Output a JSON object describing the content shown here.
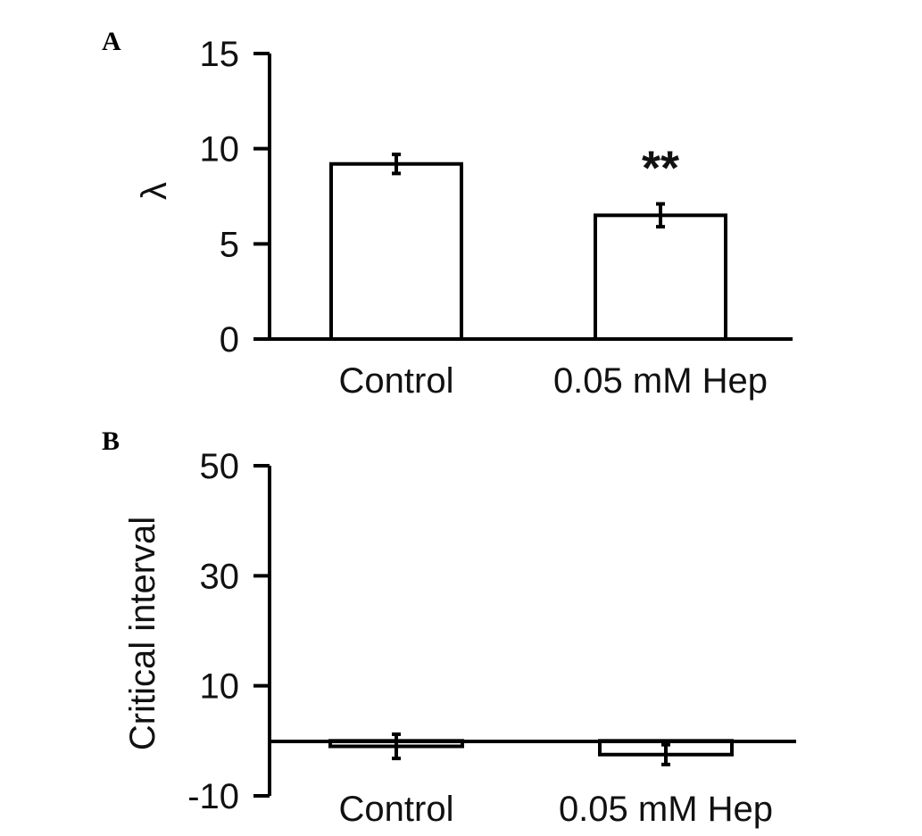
{
  "chart_data": [
    {
      "panel": "A",
      "type": "bar",
      "categories": [
        "Control",
        "0.05 mM Hep"
      ],
      "values": [
        9.2,
        6.5
      ],
      "errors": [
        0.5,
        0.6
      ],
      "annotations": [
        "",
        "**"
      ],
      "ylabel": "λ",
      "xlabel": "",
      "ylim": [
        0,
        15
      ],
      "yticks": [
        "0",
        "5",
        "10",
        "15"
      ],
      "bar_fill": "#ffffff",
      "stroke": "#000000",
      "grid": false
    },
    {
      "panel": "B",
      "type": "bar",
      "categories": [
        "Control",
        "0.05 mM Hep"
      ],
      "values": [
        -1.0,
        -2.5
      ],
      "errors": [
        2.2,
        1.8
      ],
      "annotations": [
        "",
        ""
      ],
      "ylabel": "Critical interval",
      "xlabel": "",
      "ylim": [
        -10,
        50
      ],
      "yticks": [
        "-10",
        "10",
        "30",
        "50"
      ],
      "bar_fill": "#ffffff",
      "stroke": "#000000",
      "grid": false
    }
  ]
}
